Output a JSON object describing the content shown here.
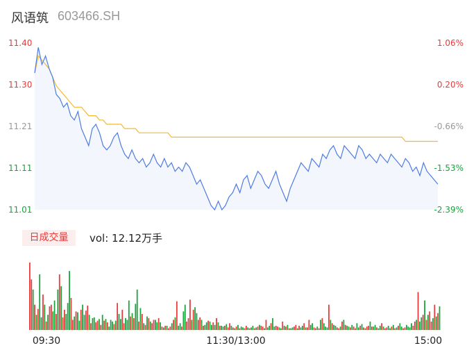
{
  "header": {
    "name": "风语筑",
    "code": "603466.SH"
  },
  "volume_panel": {
    "badge": "日成交量",
    "label": "vol: 12.12万手"
  },
  "colors": {
    "up": "#e83a3a",
    "down": "#17a53a",
    "neutral": "#999999",
    "price_line": "#4c7be3",
    "avg_line": "#f5b830",
    "area_fill": "#f3f6fd"
  },
  "chart_data": [
    {
      "type": "line",
      "series": [
        {
          "values": [
            11.33,
            11.39,
            11.35,
            11.37,
            11.34,
            11.32,
            11.28,
            11.27,
            11.25,
            11.26,
            11.23,
            11.22,
            11.24,
            11.2,
            11.18,
            11.16,
            11.2,
            11.21,
            11.19,
            11.16,
            11.15,
            11.16,
            11.18,
            11.19,
            11.16,
            11.14,
            11.13,
            11.15,
            11.13,
            11.12,
            11.13,
            11.11,
            11.12,
            11.14,
            11.12,
            11.11,
            11.13,
            11.11,
            11.12,
            11.1,
            11.11,
            11.1,
            11.12,
            11.11,
            11.09,
            11.07,
            11.08,
            11.06,
            11.04,
            11.02,
            11.01,
            11.03,
            11.01,
            11.02,
            11.04,
            11.05,
            11.07,
            11.05,
            11.08,
            11.09,
            11.06,
            11.08,
            11.1,
            11.09,
            11.07,
            11.06,
            11.08,
            11.1,
            11.07,
            11.05,
            11.03,
            11.06,
            11.08,
            11.1,
            11.12,
            11.11,
            11.1,
            11.13,
            11.12,
            11.11,
            11.14,
            11.13,
            11.15,
            11.16,
            11.14,
            11.13,
            11.16,
            11.15,
            11.14,
            11.13,
            11.16,
            11.15,
            11.13,
            11.14,
            11.13,
            11.12,
            11.14,
            11.13,
            11.12,
            11.14,
            11.13,
            11.12,
            11.11,
            11.13,
            11.12,
            11.1,
            11.11,
            11.09,
            11.12,
            11.1,
            11.09,
            11.08,
            11.07
          ]
        },
        {
          "values": [
            11.33,
            11.37,
            11.36,
            11.35,
            11.34,
            11.32,
            11.3,
            11.29,
            11.28,
            11.27,
            11.26,
            11.25,
            11.25,
            11.25,
            11.24,
            11.23,
            11.23,
            11.23,
            11.22,
            11.22,
            11.21,
            11.21,
            11.21,
            11.21,
            11.21,
            11.2,
            11.2,
            11.2,
            11.2,
            11.19,
            11.19,
            11.19,
            11.19,
            11.19,
            11.19,
            11.19,
            11.19,
            11.19,
            11.18,
            11.18,
            11.18,
            11.18,
            11.18,
            11.18,
            11.18,
            11.18,
            11.18,
            11.18,
            11.18,
            11.18,
            11.18,
            11.18,
            11.18,
            11.18,
            11.18,
            11.18,
            11.18,
            11.18,
            11.18,
            11.18,
            11.18,
            11.18,
            11.18,
            11.18,
            11.18,
            11.18,
            11.18,
            11.18,
            11.18,
            11.18,
            11.18,
            11.18,
            11.18,
            11.18,
            11.18,
            11.18,
            11.18,
            11.18,
            11.18,
            11.18,
            11.18,
            11.18,
            11.18,
            11.18,
            11.18,
            11.18,
            11.18,
            11.18,
            11.18,
            11.18,
            11.18,
            11.18,
            11.18,
            11.18,
            11.18,
            11.18,
            11.18,
            11.18,
            11.18,
            11.18,
            11.18,
            11.18,
            11.18,
            11.17,
            11.17,
            11.17,
            11.17,
            11.17,
            11.17,
            11.17,
            11.17,
            11.17,
            11.17
          ]
        }
      ],
      "y_ticks_left": [
        "11.40",
        "11.30",
        "11.21",
        "11.11",
        "11.01"
      ],
      "y_ticks_right": [
        "1.06%",
        "0.20%",
        "-0.66%",
        "-1.53%",
        "-2.39%"
      ],
      "tick_colors": [
        "up",
        "up",
        "neutral",
        "down",
        "down"
      ],
      "ylim": [
        11.01,
        11.4
      ]
    },
    {
      "type": "bar",
      "x_labels": [
        "09:30",
        "11:30/13:00",
        "15:00"
      ],
      "values": [
        80,
        60,
        48,
        30,
        18,
        25,
        66,
        15,
        42,
        30,
        10,
        18,
        28,
        30,
        22,
        35,
        19,
        48,
        66,
        52,
        15,
        24,
        19,
        32,
        70,
        38,
        12,
        16,
        22,
        21,
        11,
        24,
        30,
        18,
        23,
        29,
        18,
        8,
        14,
        15,
        9,
        11,
        13,
        6,
        18,
        11,
        13,
        9,
        4,
        12,
        10,
        7,
        11,
        32,
        19,
        13,
        24,
        8,
        14,
        12,
        35,
        16,
        20,
        14,
        31,
        48,
        10,
        26,
        19,
        8,
        6,
        16,
        14,
        10,
        8,
        12,
        12,
        9,
        14,
        9,
        4,
        3,
        5,
        5,
        2,
        4,
        8,
        12,
        15,
        34,
        5,
        8,
        4,
        22,
        30,
        10,
        14,
        36,
        12,
        24,
        27,
        20,
        12,
        15,
        12,
        5,
        6,
        9,
        11,
        10,
        6,
        9,
        6,
        14,
        9,
        5,
        5,
        4,
        5,
        7,
        3,
        8,
        5,
        3,
        2,
        4,
        6,
        2,
        4,
        3,
        2,
        5,
        3,
        2,
        3,
        5,
        2,
        3,
        4,
        6,
        5,
        4,
        2,
        12,
        3,
        5,
        8,
        14,
        4,
        5,
        4,
        3,
        2,
        10,
        5,
        4,
        6,
        2,
        2,
        3,
        4,
        6,
        2,
        5,
        3,
        5,
        8,
        3,
        3,
        12,
        6,
        8,
        3,
        2,
        4,
        2,
        12,
        14,
        8,
        4,
        3,
        30,
        12,
        8,
        6,
        5,
        3,
        2,
        4,
        10,
        12,
        6,
        5,
        4,
        3,
        6,
        4,
        2,
        8,
        3,
        5,
        7,
        3,
        2,
        4,
        5,
        10,
        4,
        4,
        6,
        3,
        2,
        5,
        8,
        4,
        2,
        3,
        5,
        2,
        4,
        6,
        2,
        3,
        5,
        8,
        4,
        2,
        3,
        6,
        4,
        3,
        8,
        5,
        10,
        12,
        45,
        10,
        15,
        18,
        35,
        12,
        18,
        22,
        10,
        14,
        30,
        16,
        20,
        28
      ],
      "directions": [
        1,
        1,
        0,
        1,
        0,
        1,
        0,
        0,
        1,
        0,
        1,
        0,
        1,
        1,
        0,
        0,
        1,
        0,
        1,
        0,
        1,
        1,
        0,
        0,
        0,
        1,
        1,
        0,
        1,
        0,
        0,
        1,
        0,
        0,
        1,
        1,
        0,
        1,
        0,
        0,
        1,
        1,
        0,
        1,
        0,
        1,
        0,
        1,
        0,
        0,
        0,
        1,
        0,
        1,
        0,
        0,
        1,
        1,
        0,
        0,
        0,
        1,
        0,
        1,
        0,
        0,
        1,
        0,
        1,
        0,
        1,
        0,
        1,
        0,
        1,
        1,
        0,
        0,
        1,
        0,
        1,
        0,
        1,
        0,
        1,
        1,
        0,
        1,
        0,
        1,
        0,
        0,
        1,
        0,
        0,
        1,
        1,
        1,
        0,
        1,
        0,
        0,
        1,
        1,
        0,
        1,
        0,
        0,
        1,
        0,
        0,
        1,
        0,
        1,
        0,
        1,
        0,
        0,
        1,
        0,
        1,
        1,
        0,
        1,
        0,
        1,
        0,
        1,
        0,
        0,
        1,
        1,
        0,
        1,
        0,
        0,
        1,
        0,
        1,
        0,
        1,
        1,
        0,
        1,
        0,
        0,
        1,
        0,
        0,
        1,
        1,
        0,
        0,
        1,
        0,
        1,
        0,
        1,
        0,
        0,
        1,
        1,
        0,
        1,
        0,
        0,
        1,
        0,
        1,
        1,
        0,
        0,
        1,
        1,
        0,
        1,
        0,
        1,
        0,
        0,
        0,
        1,
        0,
        1,
        0,
        0,
        1,
        1,
        0,
        1,
        0,
        1,
        0,
        0,
        1,
        0,
        1,
        1,
        0,
        0,
        1,
        0,
        1,
        0,
        1,
        1,
        0,
        1,
        0,
        0,
        1,
        0,
        0,
        1,
        0,
        1,
        1,
        0,
        0,
        1,
        0,
        1,
        0,
        1,
        0,
        0,
        1,
        1,
        0,
        0,
        0,
        0,
        1,
        1,
        0,
        1,
        0,
        0,
        1,
        0,
        1,
        0,
        1,
        1,
        0,
        1,
        0,
        1
      ]
    }
  ]
}
